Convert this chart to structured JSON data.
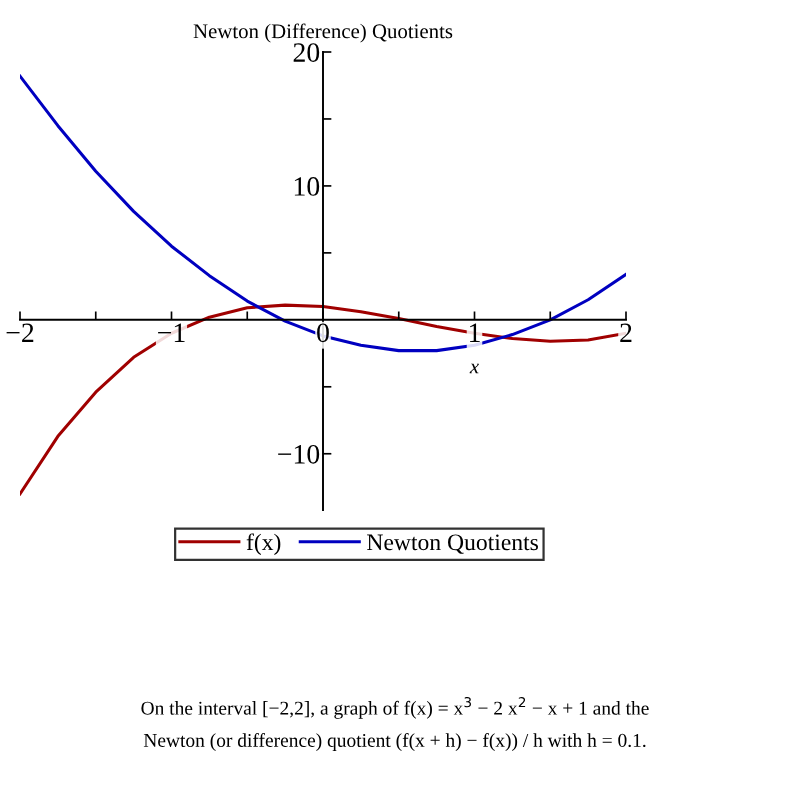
{
  "chart_data": {
    "type": "line",
    "title": "Newton (Difference) Quotients",
    "xlabel": "x",
    "x": [
      -2,
      -1.75,
      -1.5,
      -1.25,
      -1,
      -0.75,
      -0.5,
      -0.25,
      0,
      0.25,
      0.5,
      0.75,
      1,
      1.25,
      1.5,
      1.75,
      2
    ],
    "series": [
      {
        "name": "f(x)",
        "color": "#a00000",
        "values": [
          -13,
          -8.7,
          -5.4,
          -2.8,
          -1,
          0.2,
          0.9,
          1.1,
          1,
          0.6,
          0.1,
          -0.5,
          -1,
          -1.4,
          -1.6,
          -1.5,
          -1
        ]
      },
      {
        "name": "Newton Quotients",
        "color": "#0000c0",
        "values": [
          18.2,
          14.5,
          11.1,
          8.1,
          5.5,
          3.3,
          1.4,
          -0.1,
          -1.2,
          -1.9,
          -2.3,
          -2.3,
          -1.9,
          -1.1,
          0,
          1.5,
          3.4
        ]
      }
    ],
    "xlim": [
      -2,
      2
    ],
    "ylim": [
      -14.2,
      20
    ],
    "xticks": [
      {
        "value": -2,
        "label": "−2"
      },
      {
        "value": -1.5,
        "label": null
      },
      {
        "value": -1,
        "label": "−1"
      },
      {
        "value": -0.5,
        "label": null
      },
      0,
      {
        "value": 0.5,
        "label": null
      },
      1,
      {
        "value": 1.5,
        "label": null
      },
      2
    ],
    "yticks": [
      {
        "value": -10,
        "label": "−10"
      },
      {
        "value": -5,
        "label": null
      },
      {
        "value": 5,
        "label": null
      },
      10,
      {
        "value": 15,
        "label": null
      },
      20
    ],
    "legend": "bottom",
    "grid": false,
    "marker": "none",
    "line_style": "solid",
    "annotations": [
      "On the interval [−2,2], a graph of f(x) = x$^{3}$ − 2 x$^{2}$ − x + 1 and the",
      "Newton (or difference) quotient (f(x + h) − f(x)) / h with h = 0.1."
    ]
  }
}
